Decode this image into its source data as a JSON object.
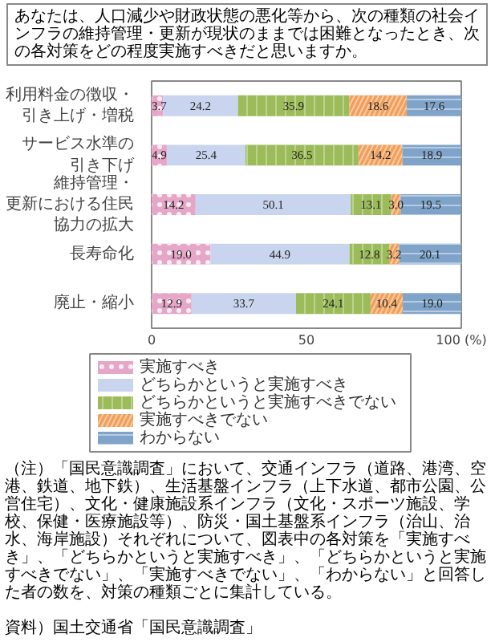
{
  "chart_data": {
    "type": "bar",
    "orientation": "horizontal",
    "stacked": true,
    "title": "あなたは、人口減少や財政状態の悪化等から、次の種類の社会インフラの維持管理・更新が現状のままでは困難となったとき、次の各対策をどの程度実施すべきだと思いますか。",
    "categories": [
      "利用料金の徴収・引き上げ・増税",
      "サービス水準の引き下げ",
      "維持管理・更新における住民協力の拡大",
      "長寿命化",
      "廃止・縮小"
    ],
    "series": [
      {
        "name": "実施すべき",
        "color": "#e6a6c7",
        "values": [
          3.7,
          4.9,
          14.2,
          19.0,
          12.9
        ],
        "value_labels": [
          "3.7",
          "4.9",
          "14.2",
          "19.0",
          "12.9"
        ]
      },
      {
        "name": "どちらかというと実施すべき",
        "color": "#c9d5ee",
        "values": [
          24.2,
          25.4,
          50.1,
          44.9,
          33.7
        ],
        "value_labels": [
          "24.2",
          "25.4",
          "50.1",
          "44.9",
          "33.7"
        ]
      },
      {
        "name": "どちらかというと実施すべきでない",
        "color": "#9cbb5a",
        "values": [
          35.9,
          36.5,
          13.1,
          12.8,
          24.1
        ],
        "value_labels": [
          "35.9",
          "36.5",
          "13.1",
          "12.8",
          "24.1"
        ]
      },
      {
        "name": "実施すべきでない",
        "color": "#f0a05c",
        "values": [
          18.6,
          14.2,
          3.0,
          3.2,
          10.4
        ],
        "value_labels": [
          "18.6",
          "14.2",
          "3.0",
          "3.2",
          "10.4"
        ]
      },
      {
        "name": "わからない",
        "color": "#7fa3c9",
        "values": [
          17.6,
          18.9,
          19.5,
          20.1,
          19.0
        ],
        "value_labels": [
          "17.6",
          "18.9",
          "19.5",
          "20.1",
          "19.0"
        ]
      }
    ],
    "xlim": [
      0,
      100
    ],
    "xticks": [
      0,
      50,
      {
        "value": 100,
        "label": "100 (%)"
      }
    ],
    "grid": false,
    "legend": "bottom",
    "annotations": [
      "（注）「国民意識調査」において、交通インフラ（道路、港湾、空港、鉄道、地下鉄）、生活基盤インフラ（上下水道、都市公園、公営住宅）、文化・健康施設系インフラ（文化・スポーツ施設、学校、保健・医療施設等）、防災・国土基盤系インフラ（治山、治水、海岸施設）それぞれについて、図表中の各対策を「実施すべき」、「どちらかというと実施すべき」、「どちらかというと実施すべきでない」、「実施すべきでない」、「わからない」と回答した者の数を、対策の種類ごとに集計している。",
      "資料）国土交通省「国民意識調査」"
    ]
  }
}
